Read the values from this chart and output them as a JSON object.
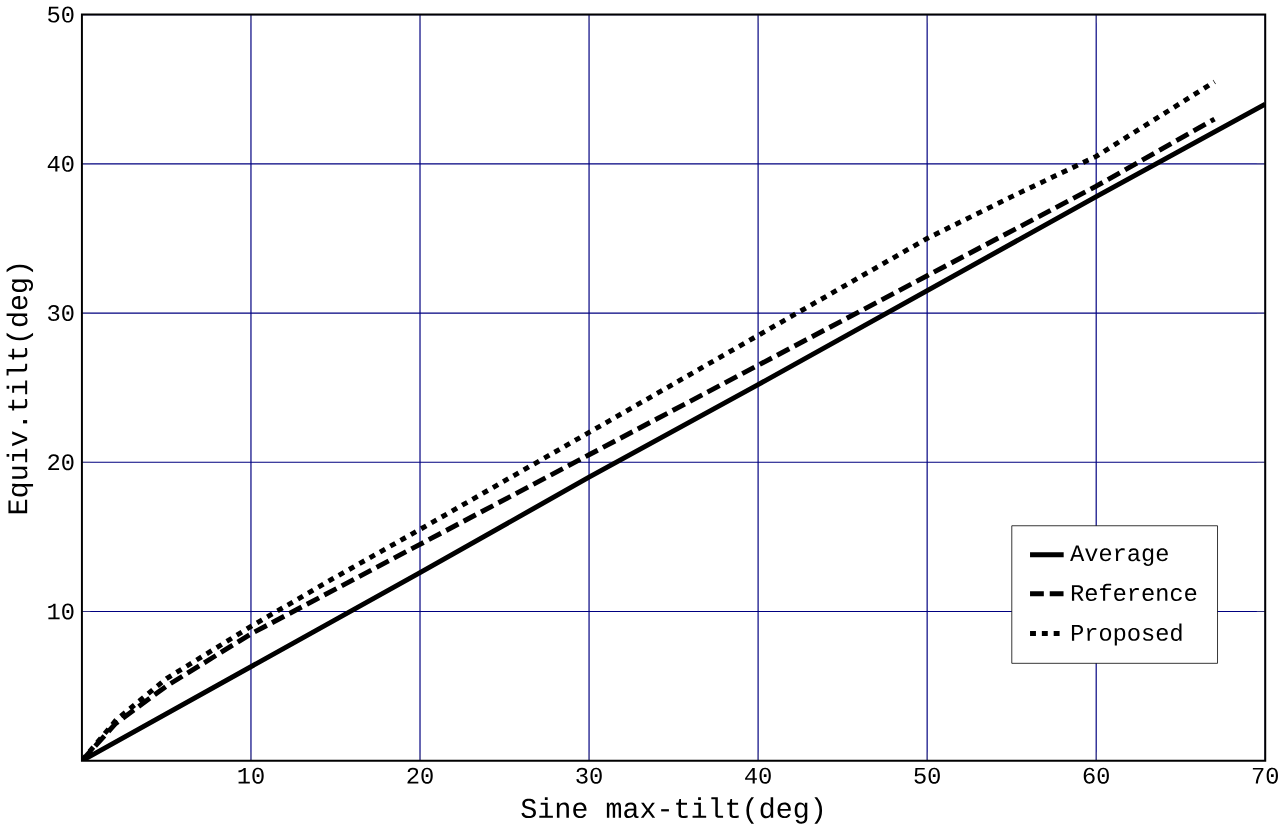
{
  "chart_data": {
    "type": "line",
    "xlabel": "Sine max-tilt(deg)",
    "ylabel": "Equiv.tilt(deg)",
    "xlim": [
      0,
      70
    ],
    "ylim": [
      0,
      50
    ],
    "xticks": [
      10,
      20,
      30,
      40,
      50,
      60,
      70
    ],
    "yticks": [
      10,
      20,
      30,
      40,
      50
    ],
    "grid": true,
    "legend": "bottom right",
    "series": [
      {
        "name": "Average",
        "color": "#000000",
        "line_style": "solid",
        "x": [
          0,
          10,
          20,
          30,
          40,
          50,
          60,
          70
        ],
        "values": [
          0,
          6.3,
          12.6,
          19,
          25.2,
          31.5,
          37.8,
          44
        ]
      },
      {
        "name": "Reference",
        "color": "#000000",
        "line_style": "dashed",
        "x": [
          0,
          2,
          5,
          10,
          15,
          20,
          30,
          40,
          50,
          60,
          67
        ],
        "values": [
          0,
          2.5,
          5,
          8.5,
          11.5,
          14.5,
          20.5,
          26.5,
          32.5,
          38.5,
          43
        ]
      },
      {
        "name": "Proposed",
        "color": "#000000",
        "line_style": "dotted",
        "x": [
          0,
          2,
          5,
          10,
          15,
          20,
          30,
          40,
          50,
          55,
          60,
          67
        ],
        "values": [
          0,
          2.7,
          5.5,
          9,
          12.3,
          15.5,
          22,
          28.5,
          35,
          37.8,
          40.5,
          45.5
        ]
      }
    ]
  }
}
